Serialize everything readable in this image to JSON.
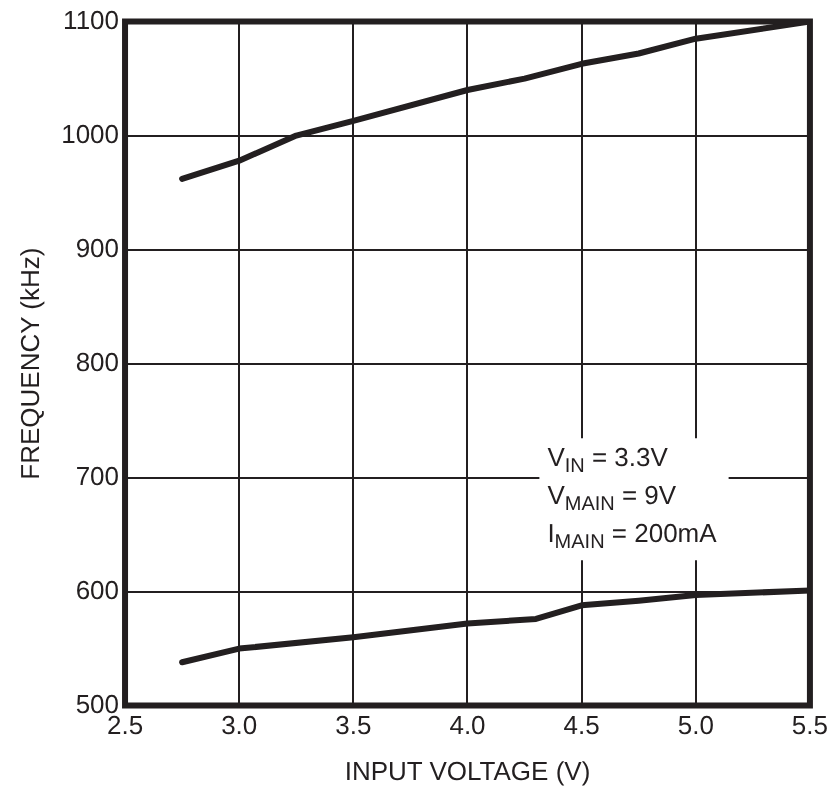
{
  "chart_data": {
    "type": "line",
    "xlabel": "INPUT VOLTAGE (V)",
    "ylabel": "FREQUENCY (kHz)",
    "xlim": [
      2.5,
      5.5
    ],
    "xticks": [
      {
        "value": 2.5,
        "label": "2.5"
      },
      {
        "value": 3,
        "label": "3.0"
      },
      {
        "value": 3.5,
        "label": "3.5"
      },
      {
        "value": 4,
        "label": "4.0"
      },
      {
        "value": 4.5,
        "label": "4.5"
      },
      {
        "value": 5,
        "label": "5.0"
      },
      {
        "value": 5.5,
        "label": "5.5"
      }
    ],
    "ylim": [
      500,
      1100
    ],
    "yticks": [
      500,
      600,
      700,
      800,
      900,
      1000,
      1100
    ],
    "series": [
      {
        "color": "#231f20",
        "x": [
          2.75,
          3.0,
          3.25,
          3.5,
          4.0,
          4.25,
          4.5,
          4.75,
          5.0,
          5.5
        ],
        "values": [
          962,
          978,
          1000,
          1013,
          1040,
          1050,
          1063,
          1072,
          1085,
          1100
        ]
      },
      {
        "color": "#231f20",
        "x": [
          2.75,
          3.0,
          3.5,
          4.0,
          4.3,
          4.5,
          4.75,
          5.0,
          5.5
        ],
        "values": [
          538,
          550,
          560,
          572,
          576,
          588,
          592,
          597,
          601
        ]
      }
    ],
    "annotations": [
      "V$_{IN}$ = 3.3V",
      "V$_{MAIN}$ = 9V",
      "I$_{MAIN}$ = 200mA"
    ],
    "grid": true,
    "legend": false,
    "marker": "none",
    "line_style": "solid"
  }
}
